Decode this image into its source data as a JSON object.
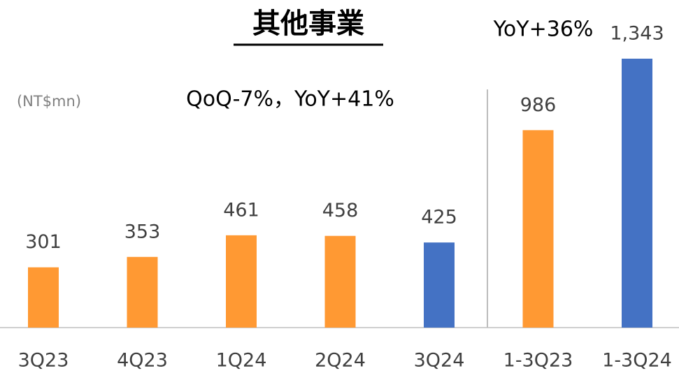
{
  "chart_data": {
    "type": "bar",
    "title": "其他事業",
    "unit_label": "(NT$mn)",
    "annotations": [
      "QoQ-7%，YoY+41%",
      "YoY+36%"
    ],
    "categories": [
      "3Q23",
      "4Q23",
      "1Q24",
      "2Q24",
      "3Q24",
      "1-3Q23",
      "1-3Q24"
    ],
    "values": [
      301,
      353,
      461,
      458,
      425,
      986,
      1343
    ],
    "value_labels": [
      "301",
      "353",
      "461",
      "458",
      "425",
      "986",
      "1,343"
    ],
    "colors": [
      "#ff9933",
      "#ff9933",
      "#ff9933",
      "#ff9933",
      "#4472c4",
      "#ff9933",
      "#4472c4"
    ]
  }
}
